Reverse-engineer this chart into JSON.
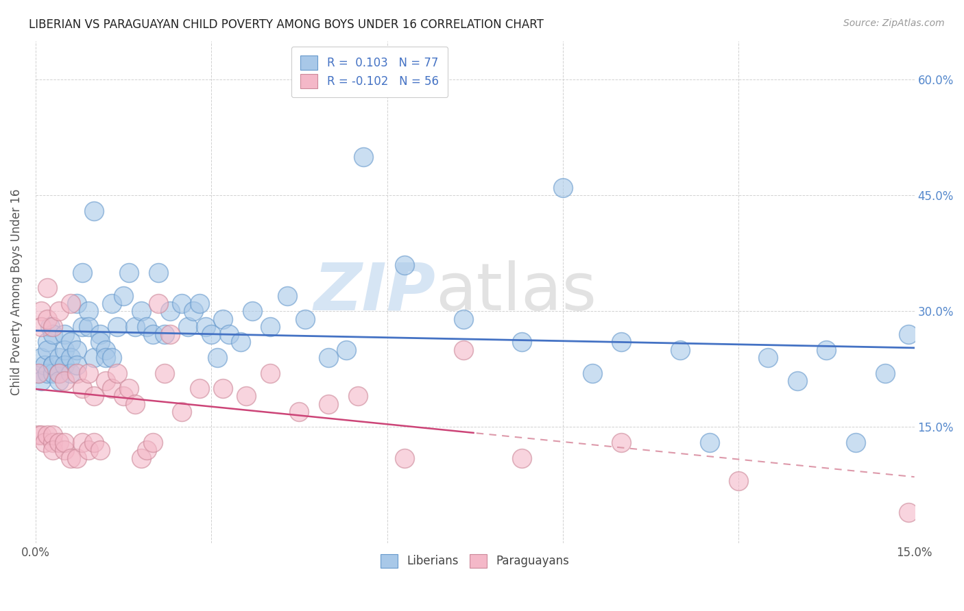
{
  "title": "LIBERIAN VS PARAGUAYAN CHILD POVERTY AMONG BOYS UNDER 16 CORRELATION CHART",
  "source": "Source: ZipAtlas.com",
  "ylabel": "Child Poverty Among Boys Under 16",
  "liberian_color": "#a8c8e8",
  "liberian_edge_color": "#6699cc",
  "paraguayan_color": "#f4b8c8",
  "paraguayan_edge_color": "#cc8899",
  "trend_liberian_color": "#4472c4",
  "trend_paraguayan_solid_color": "#cc4477",
  "trend_paraguayan_dash_color": "#dd99aa",
  "liberian_x": [
    0.0005,
    0.001,
    0.001,
    0.0015,
    0.002,
    0.002,
    0.002,
    0.0025,
    0.003,
    0.003,
    0.003,
    0.003,
    0.004,
    0.004,
    0.004,
    0.005,
    0.005,
    0.005,
    0.006,
    0.006,
    0.006,
    0.007,
    0.007,
    0.007,
    0.008,
    0.008,
    0.009,
    0.009,
    0.01,
    0.01,
    0.011,
    0.011,
    0.012,
    0.012,
    0.013,
    0.013,
    0.014,
    0.015,
    0.016,
    0.017,
    0.018,
    0.019,
    0.02,
    0.021,
    0.022,
    0.023,
    0.025,
    0.026,
    0.027,
    0.028,
    0.029,
    0.03,
    0.031,
    0.032,
    0.033,
    0.035,
    0.037,
    0.04,
    0.043,
    0.046,
    0.05,
    0.053,
    0.056,
    0.063,
    0.073,
    0.083,
    0.09,
    0.095,
    0.1,
    0.11,
    0.115,
    0.125,
    0.13,
    0.135,
    0.14,
    0.145,
    0.149
  ],
  "liberian_y": [
    0.22,
    0.24,
    0.21,
    0.23,
    0.26,
    0.25,
    0.22,
    0.28,
    0.23,
    0.22,
    0.27,
    0.23,
    0.24,
    0.22,
    0.21,
    0.27,
    0.25,
    0.23,
    0.26,
    0.24,
    0.22,
    0.31,
    0.25,
    0.23,
    0.35,
    0.28,
    0.3,
    0.28,
    0.43,
    0.24,
    0.27,
    0.26,
    0.25,
    0.24,
    0.31,
    0.24,
    0.28,
    0.32,
    0.35,
    0.28,
    0.3,
    0.28,
    0.27,
    0.35,
    0.27,
    0.3,
    0.31,
    0.28,
    0.3,
    0.31,
    0.28,
    0.27,
    0.24,
    0.29,
    0.27,
    0.26,
    0.3,
    0.28,
    0.32,
    0.29,
    0.24,
    0.25,
    0.5,
    0.36,
    0.29,
    0.26,
    0.46,
    0.22,
    0.26,
    0.25,
    0.13,
    0.24,
    0.21,
    0.25,
    0.13,
    0.22,
    0.27
  ],
  "paraguayan_x": [
    0.0005,
    0.0005,
    0.001,
    0.001,
    0.001,
    0.0015,
    0.002,
    0.002,
    0.002,
    0.003,
    0.003,
    0.003,
    0.003,
    0.004,
    0.004,
    0.004,
    0.005,
    0.005,
    0.005,
    0.006,
    0.006,
    0.007,
    0.007,
    0.008,
    0.008,
    0.009,
    0.009,
    0.01,
    0.01,
    0.011,
    0.012,
    0.013,
    0.014,
    0.015,
    0.016,
    0.017,
    0.018,
    0.019,
    0.02,
    0.021,
    0.022,
    0.023,
    0.025,
    0.028,
    0.032,
    0.036,
    0.04,
    0.045,
    0.05,
    0.055,
    0.063,
    0.073,
    0.083,
    0.1,
    0.12,
    0.149
  ],
  "paraguayan_y": [
    0.22,
    0.14,
    0.3,
    0.28,
    0.14,
    0.13,
    0.33,
    0.29,
    0.14,
    0.13,
    0.14,
    0.28,
    0.12,
    0.3,
    0.22,
    0.13,
    0.12,
    0.21,
    0.13,
    0.11,
    0.31,
    0.22,
    0.11,
    0.2,
    0.13,
    0.22,
    0.12,
    0.19,
    0.13,
    0.12,
    0.21,
    0.2,
    0.22,
    0.19,
    0.2,
    0.18,
    0.11,
    0.12,
    0.13,
    0.31,
    0.22,
    0.27,
    0.17,
    0.2,
    0.2,
    0.19,
    0.22,
    0.17,
    0.18,
    0.19,
    0.11,
    0.25,
    0.11,
    0.13,
    0.08,
    0.04
  ],
  "xlim": [
    0.0,
    0.15
  ],
  "ylim": [
    0.0,
    0.65
  ],
  "ytick_positions": [
    0.15,
    0.3,
    0.45,
    0.6
  ],
  "ytick_labels": [
    "15.0%",
    "30.0%",
    "45.0%",
    "60.0%"
  ],
  "xtick_positions": [
    0.0,
    0.03,
    0.06,
    0.09,
    0.12,
    0.15
  ],
  "xtick_labels": [
    "0.0%",
    "",
    "",
    "",
    "",
    "15.0%"
  ],
  "figsize": [
    14.06,
    8.92
  ],
  "dpi": 100,
  "dot_size": 400,
  "dot_linewidth": 1.2,
  "dot_alpha": 0.6
}
